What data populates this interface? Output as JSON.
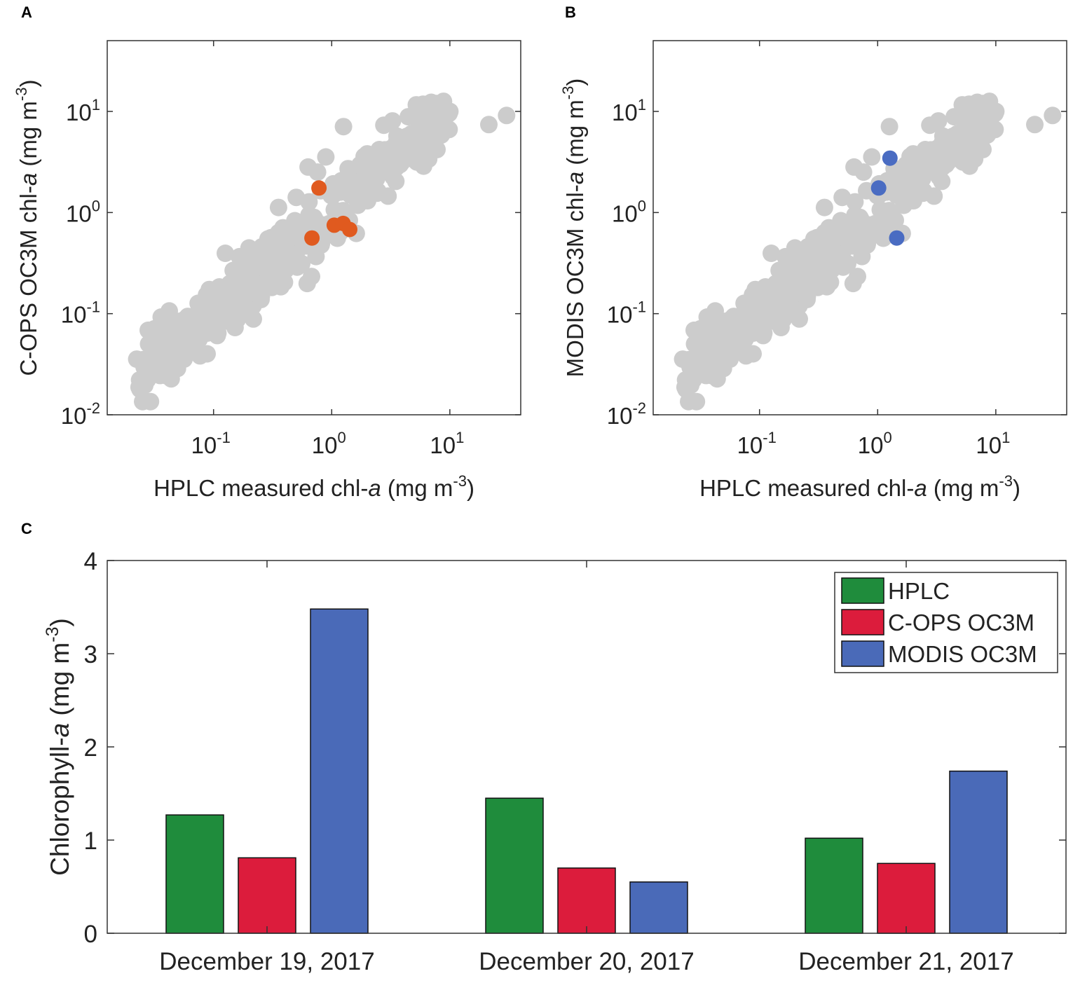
{
  "chart_data": [
    {
      "id": "A",
      "panel_label": "A",
      "type": "scatter",
      "xscale": "log",
      "yscale": "log",
      "xlim_exp": [
        -1.9,
        1.6
      ],
      "ylim_exp": [
        -2,
        1.7
      ],
      "x_tick_exponents": [
        -1,
        0,
        1
      ],
      "y_tick_exponents": [
        -2,
        -1,
        0,
        1
      ],
      "tick_base": "10",
      "xlabel": {
        "pre": "HPLC measured chl-",
        "italic": "a",
        "post": " (mg m",
        "sup": "-3",
        "close": ")"
      },
      "ylabel": {
        "pre": "C-OPS OC3M chl-",
        "italic": "a",
        "post": " (mg m",
        "sup": "-3",
        "close": ")"
      },
      "background_color": "#cccccc",
      "highlight_color": "#e05a1f",
      "highlight_name": "C-OPS OC3M",
      "highlight_points": [
        [
          0.78,
          1.75
        ],
        [
          0.68,
          0.56
        ],
        [
          1.05,
          0.75
        ],
        [
          1.25,
          0.78
        ],
        [
          1.42,
          0.68
        ]
      ]
    },
    {
      "id": "B",
      "panel_label": "B",
      "type": "scatter",
      "xscale": "log",
      "yscale": "log",
      "xlim_exp": [
        -1.9,
        1.6
      ],
      "ylim_exp": [
        -2,
        1.7
      ],
      "x_tick_exponents": [
        -1,
        0,
        1
      ],
      "y_tick_exponents": [
        -2,
        -1,
        0,
        1
      ],
      "tick_base": "10",
      "xlabel": {
        "pre": "HPLC measured chl-",
        "italic": "a",
        "post": " (mg m",
        "sup": "-3",
        "close": ")"
      },
      "ylabel": {
        "pre": "MODIS OC3M chl-",
        "italic": "a",
        "post": " (mg m",
        "sup": "-3",
        "close": ")"
      },
      "background_color": "#cccccc",
      "highlight_color": "#4a6cc2",
      "highlight_name": "MODIS OC3M",
      "highlight_points": [
        [
          1.27,
          3.45
        ],
        [
          1.02,
          1.75
        ],
        [
          1.45,
          0.56
        ]
      ]
    },
    {
      "id": "C",
      "panel_label": "C",
      "type": "bar",
      "categories": [
        "December 19, 2017",
        "December 20, 2017",
        "December 21, 2017"
      ],
      "series": [
        {
          "name": "HPLC",
          "color": "#1f8c3c",
          "values": [
            1.27,
            1.45,
            1.02
          ]
        },
        {
          "name": "C-OPS OC3M",
          "color": "#dc1c3c",
          "values": [
            0.81,
            0.7,
            0.75
          ]
        },
        {
          "name": "MODIS OC3M",
          "color": "#4a6ab8",
          "values": [
            3.48,
            0.55,
            1.74
          ]
        }
      ],
      "ylim": [
        0,
        4
      ],
      "y_ticks": [
        0,
        1,
        2,
        3,
        4
      ],
      "ylabel": {
        "pre": "Chlorophyll-",
        "italic": "a",
        "post": " (mg m",
        "sup": "-3",
        "close": ")"
      },
      "legend": "top-right"
    }
  ]
}
